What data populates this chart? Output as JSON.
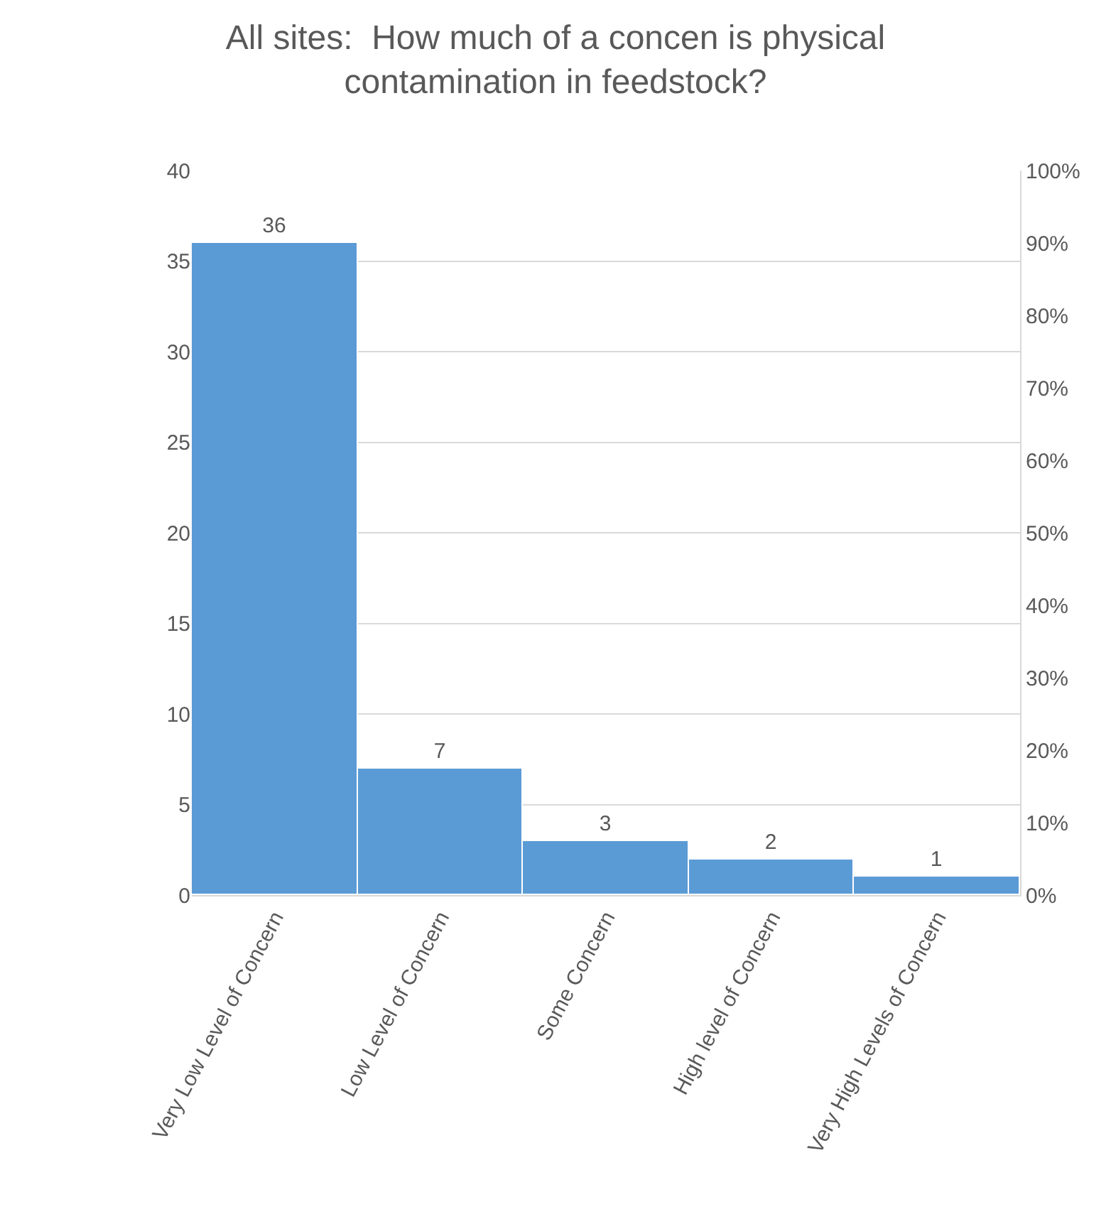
{
  "chart_data": {
    "type": "bar",
    "title": "All sites:  How much of a concen is physical\ncontamination in feedstock?",
    "categories": [
      "Very Low Level of Concern",
      "Low Level of Concern",
      "Some Concern",
      "High level of Concern",
      "Very High Levels of Concern"
    ],
    "values": [
      36,
      7,
      3,
      2,
      1
    ],
    "color": "#5b9bd5",
    "ylim": [
      0,
      40
    ],
    "yticks": [
      0,
      5,
      10,
      15,
      20,
      25,
      30,
      35,
      40
    ],
    "y2lim": [
      0,
      100
    ],
    "y2ticks": [
      {
        "value": 0,
        "label": "0%"
      },
      {
        "value": 10,
        "label": "10%"
      },
      {
        "value": 20,
        "label": "20%"
      },
      {
        "value": 30,
        "label": "30%"
      },
      {
        "value": 40,
        "label": "40%"
      },
      {
        "value": 50,
        "label": "50%"
      },
      {
        "value": 60,
        "label": "60%"
      },
      {
        "value": 70,
        "label": "70%"
      },
      {
        "value": 80,
        "label": "80%"
      },
      {
        "value": 90,
        "label": "90%"
      },
      {
        "value": 100,
        "label": "100%"
      }
    ],
    "data_labels": true,
    "grid": "y"
  }
}
